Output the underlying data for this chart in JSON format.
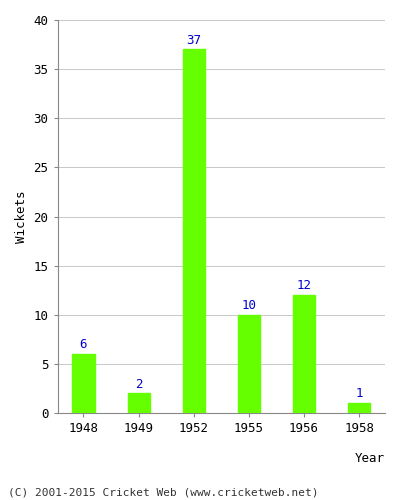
{
  "years": [
    "1948",
    "1949",
    "1952",
    "1955",
    "1956",
    "1958"
  ],
  "wickets": [
    6,
    2,
    37,
    10,
    12,
    1
  ],
  "bar_color": "#66ff00",
  "bar_edgecolor": "#66ff00",
  "label_color": "#0000cc",
  "ylabel": "Wickets",
  "xlabel": "Year",
  "ylim": [
    0,
    40
  ],
  "yticks": [
    0,
    5,
    10,
    15,
    20,
    25,
    30,
    35,
    40
  ],
  "grid_color": "#c8c8c8",
  "background_color": "#ffffff",
  "plot_bg_color": "#ffffff",
  "footer_text": "(C) 2001-2015 Cricket Web (www.cricketweb.net)",
  "footer_color": "#333333",
  "label_fontsize": 9,
  "tick_fontsize": 9,
  "axis_label_fontsize": 9,
  "footer_fontsize": 8,
  "bar_width": 0.4
}
